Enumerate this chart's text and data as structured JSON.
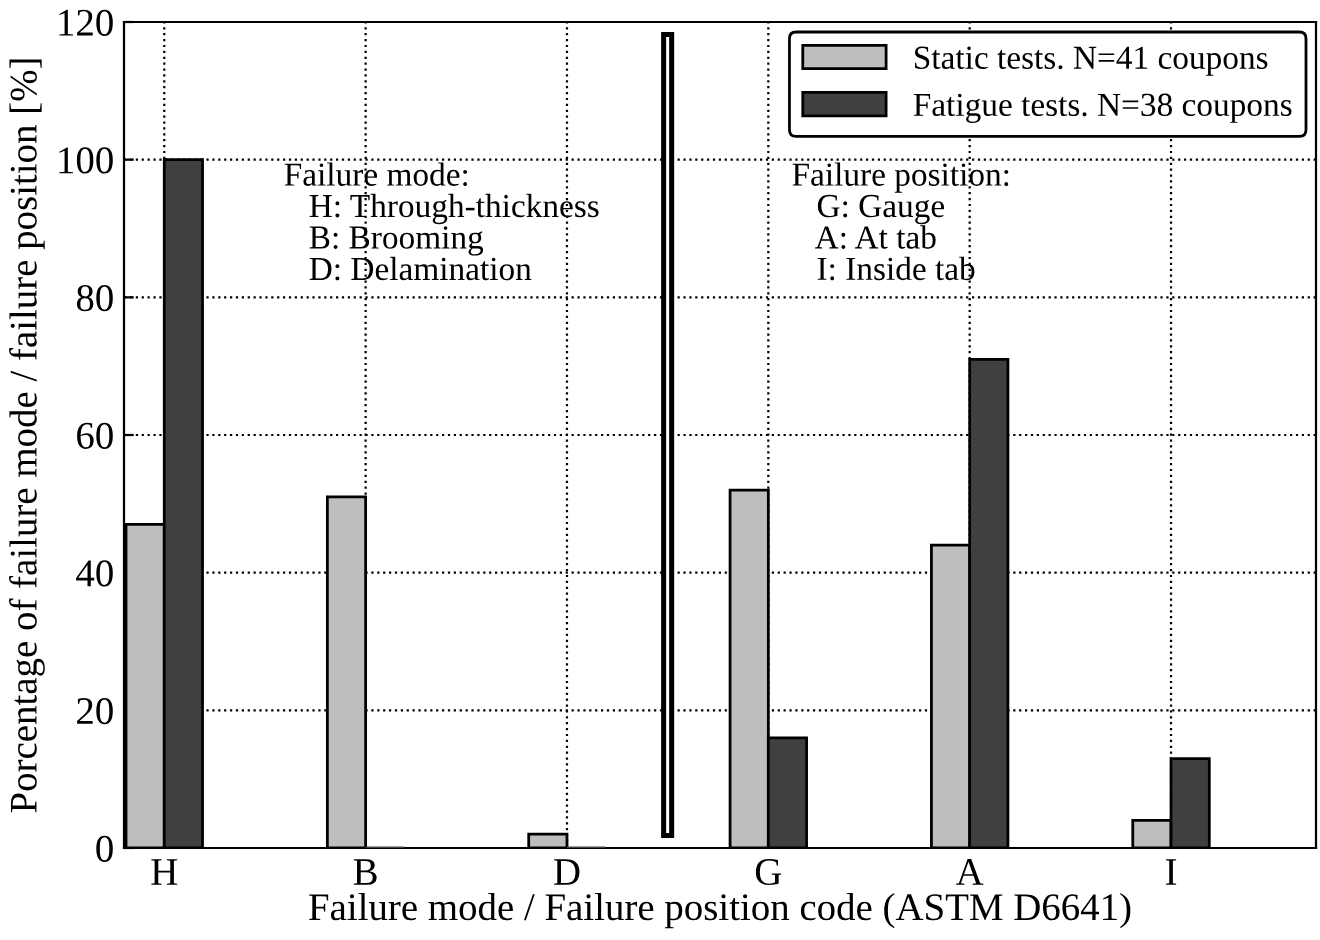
{
  "chart_data": {
    "type": "bar",
    "xlabel": "Failure mode / Failure position code (ASTM D6641)",
    "ylabel": "Porcentage of failure mode / failure position [%]",
    "categories": [
      "H",
      "B",
      "D",
      "G",
      "A",
      "I"
    ],
    "series": [
      {
        "name": "Static tests. N=41 coupons",
        "color": "#bebebe",
        "values": [
          47,
          51,
          2,
          52,
          44,
          4
        ]
      },
      {
        "name": "Fatigue tests. N=38 coupons",
        "color": "#404040",
        "values": [
          100,
          0,
          0,
          16,
          71,
          13
        ]
      }
    ],
    "ylim": [
      0,
      120
    ],
    "yticks": [
      0,
      20,
      40,
      60,
      80,
      100,
      120
    ],
    "grid": true,
    "legend": "top right",
    "annotations": [
      "Failure mode:\n   H: Through-thickness\n   B: Brooming\n   D: Delamination",
      "Failure position:\n   G: Gauge\n   A: At tab\n   I: Inside tab"
    ]
  }
}
